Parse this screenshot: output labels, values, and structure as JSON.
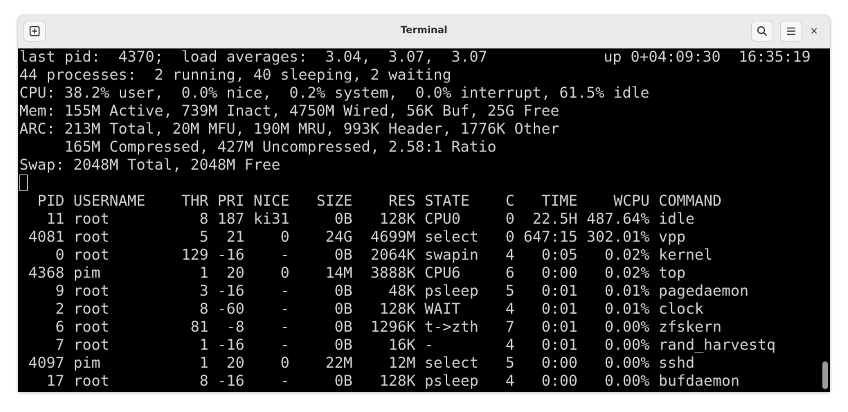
{
  "window": {
    "title": "Terminal"
  },
  "icons": {
    "new_tab": "new-tab-icon",
    "search": "search-icon",
    "menu": "hamburger-menu-icon",
    "close": "close-icon"
  },
  "close_glyph": "×",
  "summary": {
    "line1_left": "last pid:  4370;  load averages:  3.04,  3.07,  3.07",
    "line1_right": "up 0+04:09:30  16:35:19",
    "line2": "44 processes:  2 running, 40 sleeping, 2 waiting",
    "line3": "CPU: 38.2% user,  0.0% nice,  0.2% system,  0.0% interrupt, 61.5% idle",
    "line4": "Mem: 155M Active, 739M Inact, 4750M Wired, 56K Buf, 25G Free",
    "line5": "ARC: 213M Total, 20M MFU, 190M MRU, 993K Header, 1776K Other",
    "line6": "     165M Compressed, 427M Uncompressed, 2.58:1 Ratio",
    "line7": "Swap: 2048M Total, 2048M Free"
  },
  "table": {
    "columns": [
      "PID",
      "USERNAME",
      "THR",
      "PRI",
      "NICE",
      "SIZE",
      "RES",
      "STATE",
      "C",
      "TIME",
      "WCPU",
      "COMMAND"
    ],
    "rows": [
      [
        "11",
        "root",
        "8",
        "187",
        "ki31",
        "0B",
        "128K",
        "CPU0",
        "0",
        "22.5H",
        "487.64%",
        "idle"
      ],
      [
        "4081",
        "root",
        "5",
        "21",
        "0",
        "24G",
        "4699M",
        "select",
        "0",
        "647:15",
        "302.01%",
        "vpp"
      ],
      [
        "0",
        "root",
        "129",
        "-16",
        "-",
        "0B",
        "2064K",
        "swapin",
        "4",
        "0:05",
        "0.02%",
        "kernel"
      ],
      [
        "4368",
        "pim",
        "1",
        "20",
        "0",
        "14M",
        "3888K",
        "CPU6",
        "6",
        "0:00",
        "0.02%",
        "top"
      ],
      [
        "9",
        "root",
        "3",
        "-16",
        "-",
        "0B",
        "48K",
        "psleep",
        "5",
        "0:01",
        "0.01%",
        "pagedaemon"
      ],
      [
        "2",
        "root",
        "8",
        "-60",
        "-",
        "0B",
        "128K",
        "WAIT",
        "4",
        "0:01",
        "0.01%",
        "clock"
      ],
      [
        "6",
        "root",
        "81",
        "-8",
        "-",
        "0B",
        "1296K",
        "t->zth",
        "7",
        "0:01",
        "0.00%",
        "zfskern"
      ],
      [
        "7",
        "root",
        "1",
        "-16",
        "-",
        "0B",
        "16K",
        "-",
        "4",
        "0:01",
        "0.00%",
        "rand_harvestq"
      ],
      [
        "4097",
        "pim",
        "1",
        "20",
        "0",
        "22M",
        "12M",
        "select",
        "5",
        "0:00",
        "0.00%",
        "sshd"
      ],
      [
        "17",
        "root",
        "8",
        "-16",
        "-",
        "0B",
        "128K",
        "psleep",
        "4",
        "0:00",
        "0.00%",
        "bufdaemon"
      ]
    ]
  }
}
